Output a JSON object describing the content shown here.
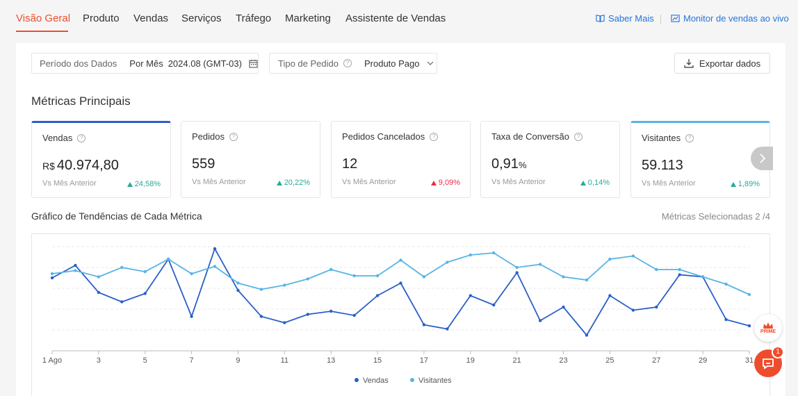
{
  "nav": {
    "tabs": [
      {
        "label": "Visão Geral"
      },
      {
        "label": "Produto"
      },
      {
        "label": "Vendas"
      },
      {
        "label": "Serviços"
      },
      {
        "label": "Tráfego"
      },
      {
        "label": "Marketing"
      },
      {
        "label": "Assistente de Vendas"
      }
    ],
    "active_tab": "Visão Geral",
    "saber_mais": "Saber Mais",
    "monitor": "Monitor de vendas ao vivo"
  },
  "filters": {
    "period_label": "Período dos Dados",
    "period_mode": "Por Mês",
    "period_value": "2024.08 (GMT-03)",
    "order_type_label": "Tipo de Pedido",
    "order_type_value": "Produto Pago"
  },
  "export_label": "Exportar dados",
  "section_title": "Métricas Principais",
  "metrics": [
    {
      "name": "Vendas",
      "currency": "R$",
      "value": "40.974,80",
      "compare": "Vs Mês Anterior",
      "delta": "24,58%",
      "trend": "up-green"
    },
    {
      "name": "Pedidos",
      "value": "559",
      "compare": "Vs Mês Anterior",
      "delta": "20,22%",
      "trend": "up-green"
    },
    {
      "name": "Pedidos Cancelados",
      "value": "12",
      "compare": "Vs Mês Anterior",
      "delta": "9,09%",
      "trend": "up-red"
    },
    {
      "name": "Taxa de Conversão",
      "value": "0,91",
      "unit": "%",
      "compare": "Vs Mês Anterior",
      "delta": "0,14%",
      "trend": "up-green"
    },
    {
      "name": "Visitantes",
      "value": "59.113",
      "compare": "Vs Mês Anterior",
      "delta": "1,89%",
      "trend": "up-green"
    }
  ],
  "trend_title": "Gráfico de Tendências de Cada Métrica",
  "selected_metrics": "Métricas Selecionadas 2 /4",
  "chart_data": {
    "type": "line",
    "x": [
      1,
      2,
      3,
      4,
      5,
      6,
      7,
      8,
      9,
      10,
      11,
      12,
      13,
      14,
      15,
      16,
      17,
      18,
      19,
      20,
      21,
      22,
      23,
      24,
      25,
      26,
      27,
      28,
      29,
      30,
      31
    ],
    "x_ticks": [
      "1 Ago",
      "3",
      "5",
      "7",
      "9",
      "11",
      "13",
      "15",
      "17",
      "19",
      "21",
      "23",
      "25",
      "27",
      "29",
      "31"
    ],
    "grid": true,
    "legend": "bottom-center",
    "series": [
      {
        "name": "Vendas",
        "color": "#2a5fc9",
        "values": [
          70,
          82,
          56,
          47,
          55,
          88,
          33,
          98,
          58,
          33,
          27,
          35,
          38,
          34,
          53,
          65,
          25,
          21,
          53,
          44,
          75,
          29,
          42,
          15,
          53,
          39,
          42,
          73,
          71,
          30,
          24
        ]
      },
      {
        "name": "Visitantes",
        "color": "#58b4e5",
        "values": [
          74,
          77,
          71,
          80,
          76,
          88,
          74,
          81,
          65,
          59,
          63,
          69,
          78,
          72,
          72,
          87,
          71,
          85,
          92,
          94,
          80,
          83,
          71,
          68,
          88,
          91,
          78,
          78,
          71,
          64,
          54
        ]
      }
    ]
  },
  "prime_label": "PRIME",
  "chat_badge": "1"
}
